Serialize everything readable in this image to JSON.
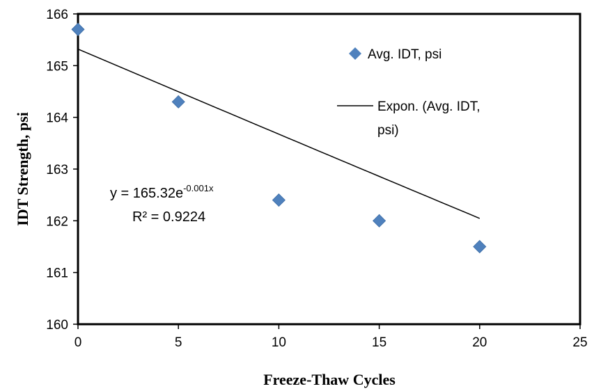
{
  "chart_data": {
    "type": "scatter",
    "title": "",
    "xlabel": "Freeze-Thaw Cycles",
    "ylabel": "IDT Strength, psi",
    "xlim": [
      0,
      25
    ],
    "ylim": [
      160,
      166
    ],
    "x_ticks": [
      "0",
      "5",
      "10",
      "15",
      "20",
      "25"
    ],
    "y_ticks": [
      "160",
      "161",
      "162",
      "163",
      "164",
      "165",
      "166"
    ],
    "grid": false,
    "legend_position": "top-right",
    "series": [
      {
        "name": "Avg. IDT, psi",
        "marker": "diamond",
        "color": "#4F81BD",
        "x": [
          0,
          5,
          10,
          15,
          20
        ],
        "y": [
          165.7,
          164.3,
          162.4,
          162.0,
          161.5
        ]
      }
    ],
    "trendline": {
      "name_line1": "Expon. (Avg. IDT,",
      "name_line2": "psi)",
      "type": "exponential",
      "a": 165.32,
      "b": -0.001,
      "x_range": [
        0,
        20
      ],
      "color": "#000000"
    },
    "equation": {
      "prefix": "y = 165.32e",
      "exponent": "-0.001x",
      "r2": "R² = 0.9224"
    }
  }
}
